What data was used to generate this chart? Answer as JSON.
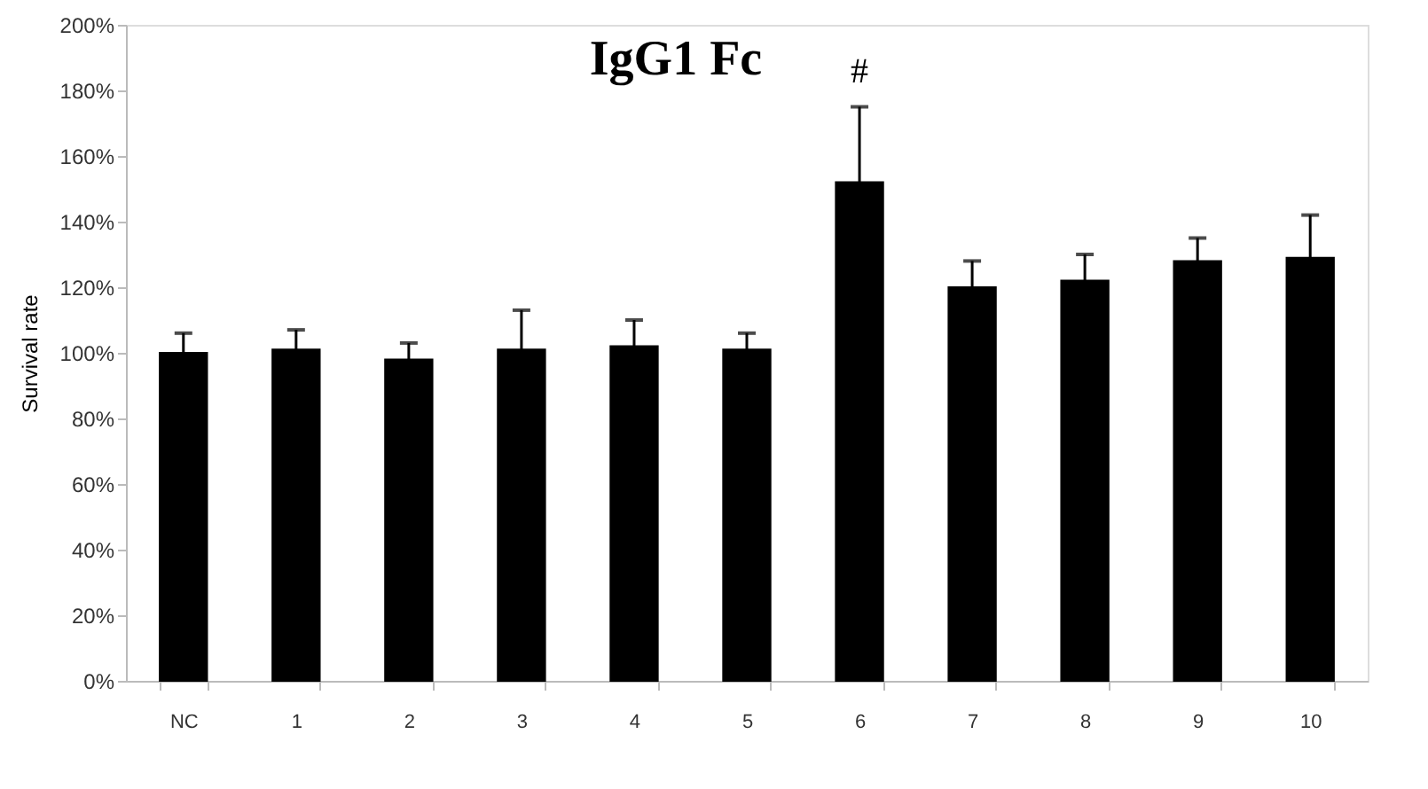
{
  "chart_data": {
    "type": "bar",
    "title": "IgG1 Fc",
    "ylabel": "Survival rate",
    "categories": [
      "NC",
      "1",
      "2",
      "3",
      "4",
      "5",
      "6",
      "7",
      "8",
      "9",
      "10"
    ],
    "values": [
      100,
      101,
      98,
      101,
      102,
      101,
      152,
      120,
      122,
      128,
      129
    ],
    "errors": [
      [
        100,
        106
      ],
      [
        101,
        107
      ],
      [
        98,
        103
      ],
      [
        101,
        113
      ],
      [
        102,
        110
      ],
      [
        101,
        106
      ],
      [
        152,
        175
      ],
      [
        120,
        128
      ],
      [
        122,
        130
      ],
      [
        128,
        135
      ],
      [
        129,
        142
      ]
    ],
    "color": "#000000",
    "ylim": [
      0,
      200
    ],
    "yticks": [
      {
        "value": 0,
        "label": "0%"
      },
      {
        "value": 20,
        "label": "20%"
      },
      {
        "value": 40,
        "label": "40%"
      },
      {
        "value": 60,
        "label": "60%"
      },
      {
        "value": 80,
        "label": "80%"
      },
      {
        "value": 100,
        "label": "100%"
      },
      {
        "value": 120,
        "label": "120%"
      },
      {
        "value": 140,
        "label": "140%"
      },
      {
        "value": 160,
        "label": "160%"
      },
      {
        "value": 180,
        "label": "180%"
      },
      {
        "value": 200,
        "label": "200%"
      }
    ],
    "annotations": [
      {
        "text": "#",
        "x": "6",
        "y": 175
      }
    ],
    "grid": false
  }
}
